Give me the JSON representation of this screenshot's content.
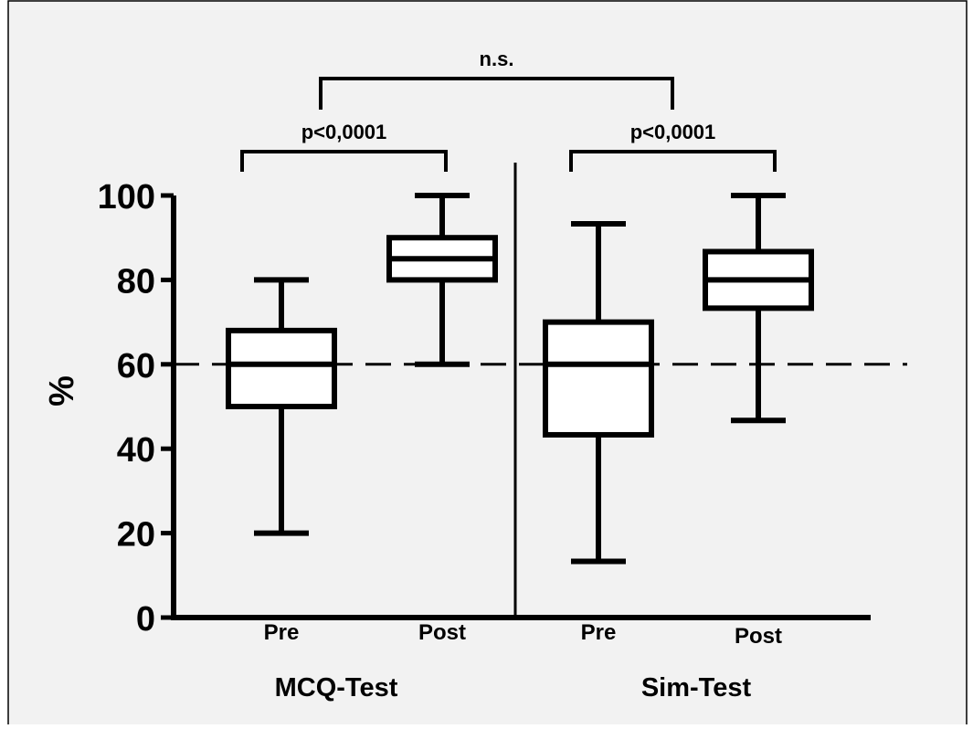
{
  "chart_data": {
    "type": "box",
    "ylabel": "%",
    "xlabel": "",
    "ylim": [
      0,
      100
    ],
    "yticks": [
      0,
      20,
      40,
      60,
      80,
      100
    ],
    "reference_line": {
      "y": 60,
      "style": "dashed"
    },
    "groups": [
      {
        "label": "MCQ-Test",
        "categories": [
          "Pre",
          "Post"
        ]
      },
      {
        "label": "Sim-Test",
        "categories": [
          "Pre",
          "Post"
        ]
      }
    ],
    "boxes": [
      {
        "group": "MCQ-Test",
        "category": "Pre",
        "min": 20,
        "q1": 50,
        "median": 60,
        "q3": 68,
        "max": 80
      },
      {
        "group": "MCQ-Test",
        "category": "Post",
        "min": 60,
        "q1": 80,
        "median": 85,
        "q3": 90,
        "max": 100
      },
      {
        "group": "Sim-Test",
        "category": "Pre",
        "min": 13.3,
        "q1": 43.3,
        "median": 60,
        "q3": 70,
        "max": 93.3
      },
      {
        "group": "Sim-Test",
        "category": "Post",
        "min": 46.7,
        "q1": 73.3,
        "median": 80,
        "q3": 86.7,
        "max": 100
      }
    ],
    "annotations": [
      {
        "text": "p<0,0001",
        "between": [
          "MCQ-Test Pre",
          "MCQ-Test Post"
        ]
      },
      {
        "text": "p<0,0001",
        "between": [
          "Sim-Test Pre",
          "Sim-Test Post"
        ]
      },
      {
        "text": "n.s.",
        "between": [
          "MCQ-Test",
          "Sim-Test"
        ]
      }
    ],
    "background": "#f2f2f2",
    "line_color": "#000000",
    "box_fill": "#ffffff"
  }
}
